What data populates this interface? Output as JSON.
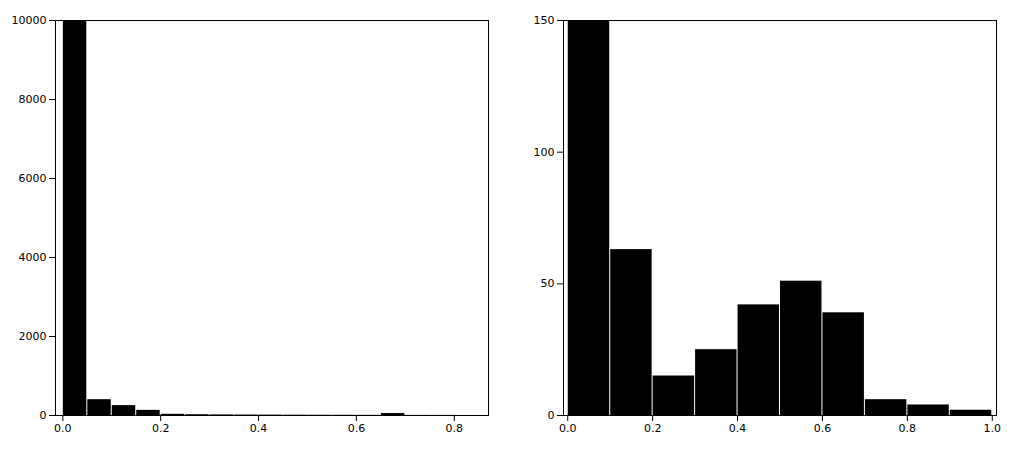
{
  "chart_data": [
    {
      "type": "histogram",
      "bins": [
        0.0,
        0.05,
        0.1,
        0.15,
        0.2,
        0.25,
        0.3,
        0.35,
        0.4,
        0.45,
        0.5,
        0.55,
        0.6,
        0.65,
        0.7,
        0.75,
        0.8,
        0.85
      ],
      "values": [
        10000,
        400,
        250,
        130,
        30,
        20,
        15,
        12,
        10,
        8,
        6,
        5,
        4,
        50,
        3,
        2,
        1
      ],
      "xlim": [
        -0.015,
        0.87
      ],
      "ylim": [
        0,
        10000
      ],
      "xticks": [
        {
          "value": 0.0,
          "label": "0.0"
        },
        0.2,
        0.4,
        0.6,
        0.8
      ],
      "yticks": [
        0,
        2000,
        4000,
        6000,
        8000,
        10000
      ],
      "grid": false
    },
    {
      "type": "histogram",
      "bins": [
        0.0,
        0.1,
        0.2,
        0.3,
        0.4,
        0.5,
        0.6,
        0.7,
        0.8,
        0.9,
        1.0
      ],
      "values": [
        150,
        63,
        15,
        25,
        42,
        51,
        39,
        6,
        4,
        2
      ],
      "xlim": [
        -0.01,
        1.01
      ],
      "ylim": [
        0,
        150
      ],
      "xticks": [
        {
          "value": 0.0,
          "label": "0.0"
        },
        0.2,
        0.4,
        0.6,
        0.8,
        {
          "value": 1.0,
          "label": "1.0"
        }
      ],
      "yticks": [
        0,
        50,
        100,
        150
      ],
      "grid": false
    }
  ]
}
